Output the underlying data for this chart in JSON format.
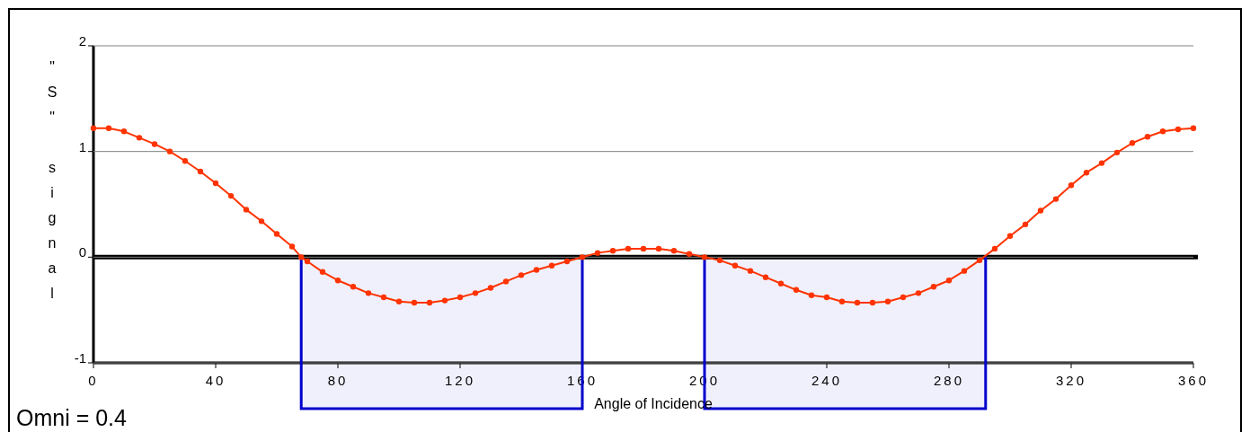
{
  "chart_data": {
    "type": "line",
    "xlabel": "Angle of Incidence",
    "ylabel": "\"S\" signal",
    "annotations": [
      "Omni = 0.4"
    ],
    "xlim": [
      0,
      360
    ],
    "xticks": [
      0,
      40,
      80,
      120,
      160,
      200,
      240,
      280,
      320,
      360
    ],
    "ylim": [
      -1,
      2
    ],
    "yticks": [
      -1,
      0,
      1,
      2
    ],
    "grid": "y",
    "marker": "circle",
    "ref_lines": [
      {
        "axis": "y",
        "value": 0,
        "color": "#000000"
      }
    ],
    "bands": [
      {
        "axis": "x",
        "from": 68,
        "to": 160,
        "color": "#0000cc"
      },
      {
        "axis": "x",
        "from": 200,
        "to": 292,
        "color": "#0000cc"
      }
    ],
    "series": [
      {
        "color": "#ff3300",
        "x": [
          0,
          5,
          10,
          15,
          20,
          25,
          30,
          35,
          40,
          45,
          50,
          55,
          60,
          65,
          68,
          70,
          75,
          80,
          85,
          90,
          95,
          100,
          105,
          110,
          115,
          120,
          125,
          130,
          135,
          140,
          145,
          150,
          155,
          160,
          165,
          170,
          175,
          180,
          185,
          190,
          195,
          200,
          205,
          210,
          215,
          220,
          225,
          230,
          235,
          240,
          245,
          250,
          255,
          260,
          265,
          270,
          275,
          280,
          285,
          290,
          295,
          300,
          305,
          310,
          315,
          320,
          325,
          330,
          335,
          340,
          345,
          350,
          355,
          360
        ],
        "values": [
          1.22,
          1.22,
          1.19,
          1.13,
          1.07,
          1.0,
          0.91,
          0.81,
          0.7,
          0.58,
          0.45,
          0.34,
          0.22,
          0.1,
          0.0,
          -0.04,
          -0.14,
          -0.22,
          -0.28,
          -0.34,
          -0.38,
          -0.42,
          -0.43,
          -0.43,
          -0.41,
          -0.38,
          -0.34,
          -0.29,
          -0.23,
          -0.17,
          -0.12,
          -0.08,
          -0.04,
          0.0,
          0.04,
          0.06,
          0.08,
          0.08,
          0.08,
          0.06,
          0.03,
          0.0,
          -0.03,
          -0.08,
          -0.13,
          -0.19,
          -0.25,
          -0.31,
          -0.36,
          -0.38,
          -0.42,
          -0.43,
          -0.43,
          -0.42,
          -0.38,
          -0.34,
          -0.28,
          -0.22,
          -0.13,
          -0.03,
          0.08,
          0.2,
          0.31,
          0.44,
          0.55,
          0.68,
          0.8,
          0.89,
          0.99,
          1.08,
          1.14,
          1.19,
          1.21,
          1.22
        ]
      }
    ]
  }
}
